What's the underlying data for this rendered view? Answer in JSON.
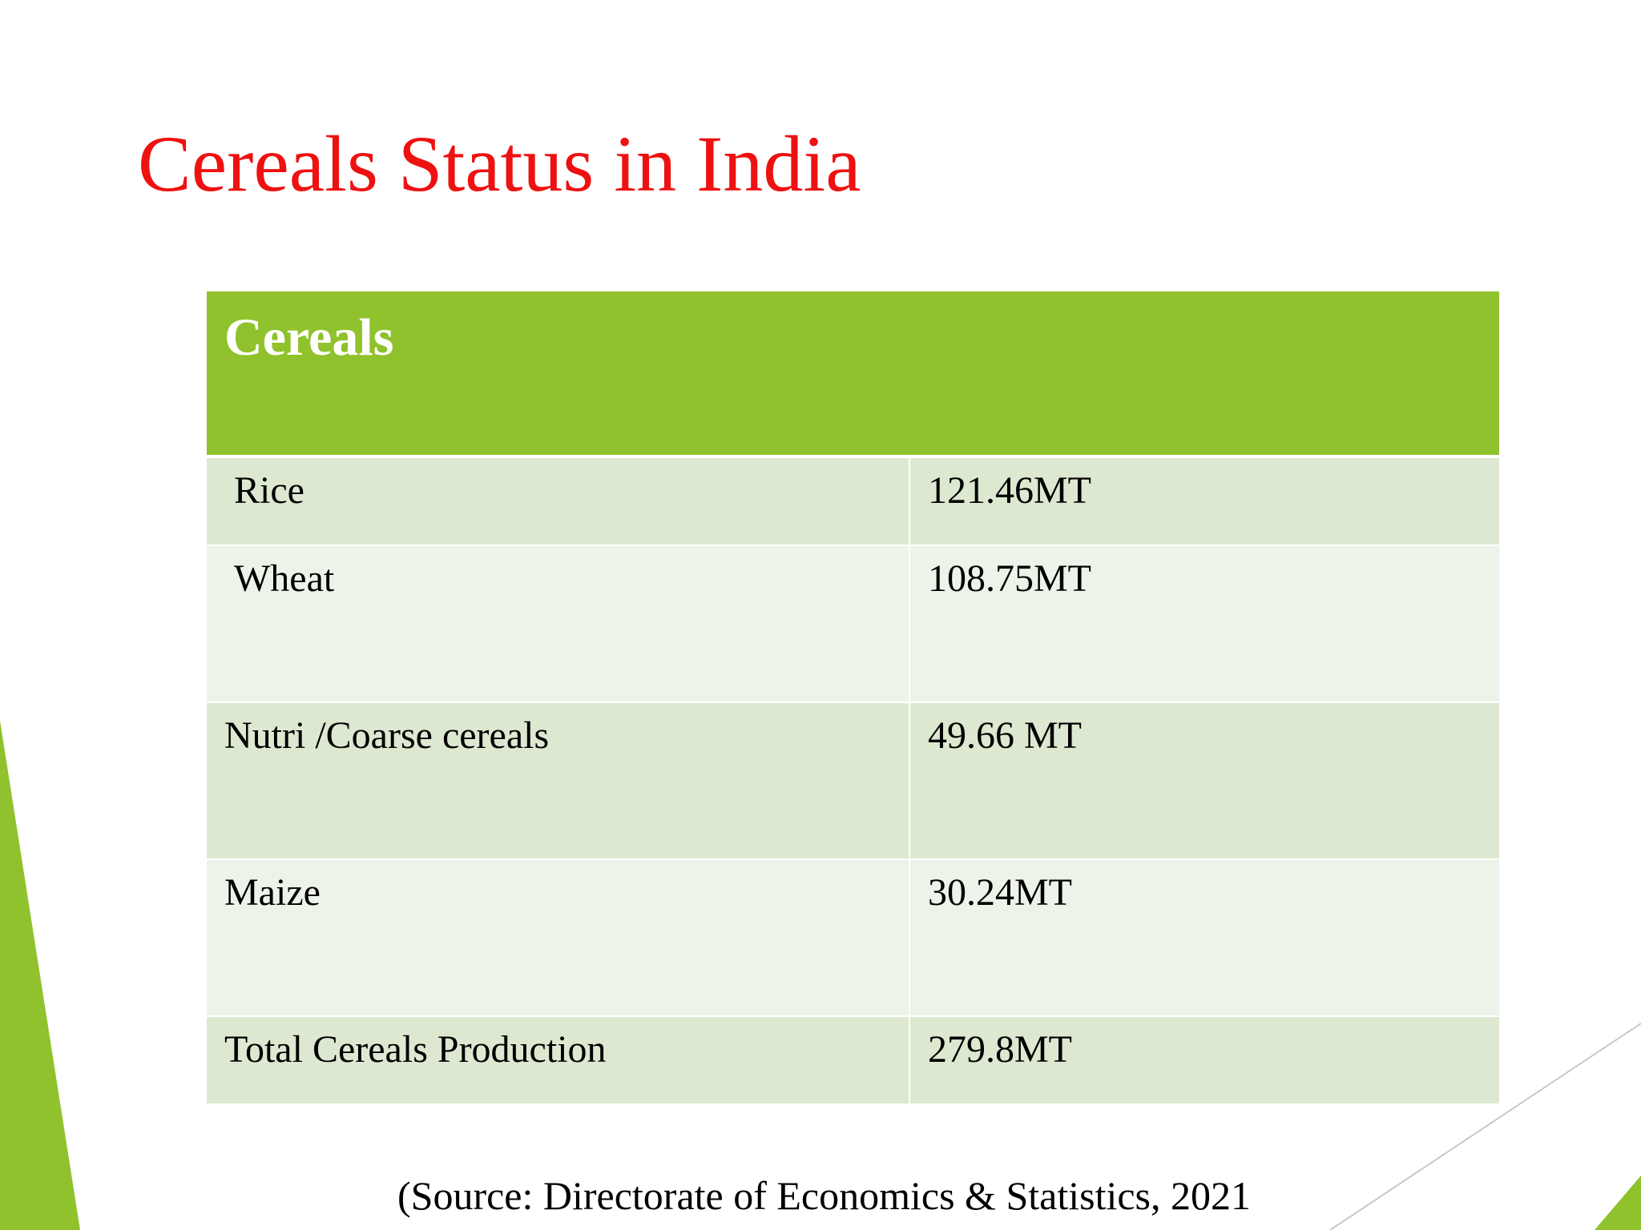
{
  "slide": {
    "title": "Cereals Status in India",
    "accent_color": "#8fc22c",
    "title_color": "#ee1111"
  },
  "table": {
    "header": "Cereals",
    "rows": [
      {
        "crop": "Rice",
        "production": "121.46MT"
      },
      {
        "crop": "Wheat",
        "production": "108.75MT"
      },
      {
        "crop": "Nutri /Coarse cereals",
        "production": "49.66 MT"
      },
      {
        "crop": "Maize",
        "production": "30.24MT"
      },
      {
        "crop": "Total Cereals Production",
        "production": "279.8MT"
      }
    ]
  },
  "footer": {
    "source": "(Source: Directorate of Economics & Statistics, 2021"
  }
}
